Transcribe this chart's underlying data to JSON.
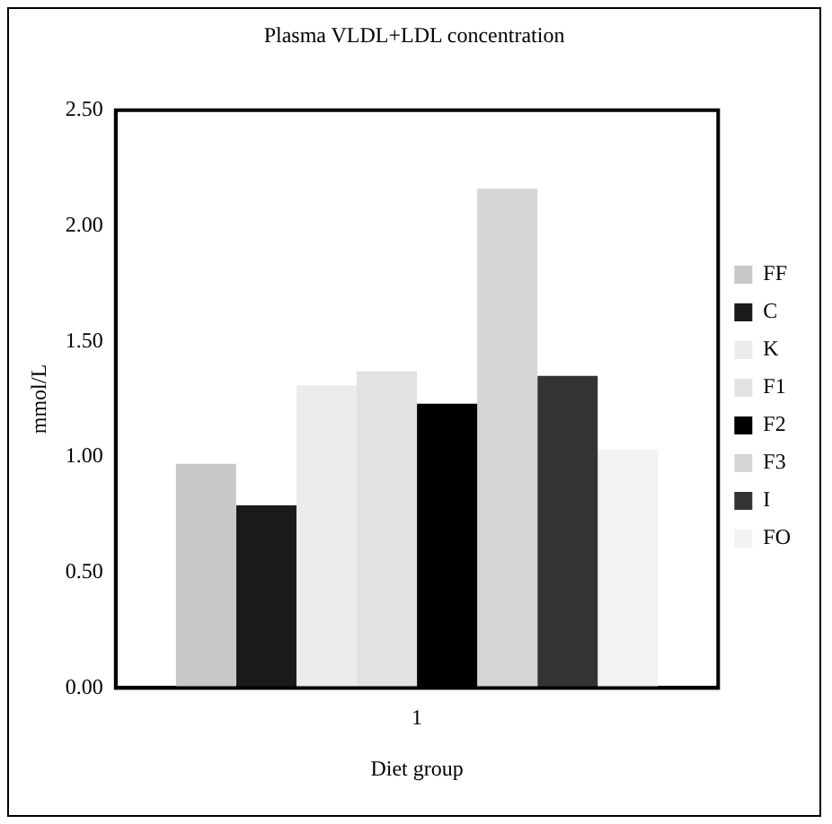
{
  "chart_data": {
    "type": "bar",
    "title": "Plasma VLDL+LDL concentration",
    "xlabel": "Diet group",
    "ylabel": "mmol/L",
    "categories": [
      "1"
    ],
    "series": [
      {
        "name": "FF",
        "color": "#c8c8c8",
        "values": [
          0.97
        ]
      },
      {
        "name": "C",
        "color": "#1a1a1a",
        "values": [
          0.79
        ]
      },
      {
        "name": "K",
        "color": "#ececec",
        "values": [
          1.31
        ]
      },
      {
        "name": "F1",
        "color": "#e2e2e2",
        "values": [
          1.37
        ]
      },
      {
        "name": "F2",
        "color": "#000000",
        "values": [
          1.23
        ]
      },
      {
        "name": "F3",
        "color": "#d6d6d6",
        "values": [
          2.16
        ]
      },
      {
        "name": "I",
        "color": "#333333",
        "values": [
          1.35
        ]
      },
      {
        "name": "FO",
        "color": "#f2f2f2",
        "values": [
          1.03
        ]
      }
    ],
    "ylim": [
      0,
      2.5
    ],
    "yticks": [
      {
        "value": 0,
        "label": "0.00"
      },
      {
        "value": 0.5,
        "label": "0.50"
      },
      {
        "value": 1,
        "label": "1.00"
      },
      {
        "value": 1.5,
        "label": "1.50"
      },
      {
        "value": 2,
        "label": "2.00"
      },
      {
        "value": 2.5,
        "label": "2.50"
      }
    ],
    "grid": false,
    "legend": "right"
  }
}
